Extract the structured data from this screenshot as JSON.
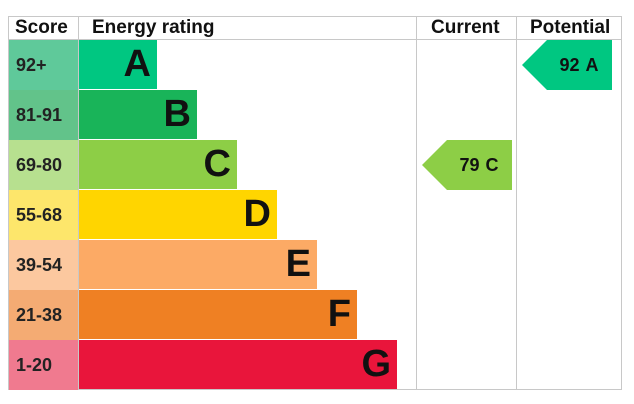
{
  "headers": {
    "score": "Score",
    "rating": "Energy rating",
    "current": "Current",
    "potential": "Potential"
  },
  "chart_data": {
    "type": "bar",
    "bands": [
      {
        "letter": "A",
        "range": "92+",
        "color": "#00c781",
        "score_bg": "#5fc99a"
      },
      {
        "letter": "B",
        "range": "81-91",
        "color": "#19b459",
        "score_bg": "#62c38a"
      },
      {
        "letter": "C",
        "range": "69-80",
        "color": "#8dce46",
        "score_bg": "#b7e08f"
      },
      {
        "letter": "D",
        "range": "55-68",
        "color": "#ffd500",
        "score_bg": "#fde66b"
      },
      {
        "letter": "E",
        "range": "39-54",
        "color": "#fcaa65",
        "score_bg": "#fcc89f"
      },
      {
        "letter": "F",
        "range": "21-38",
        "color": "#ef8023",
        "score_bg": "#f4ab73"
      },
      {
        "letter": "G",
        "range": "1-20",
        "color": "#e9153b",
        "score_bg": "#f07a8f"
      }
    ],
    "current": {
      "value": 79,
      "band": "C",
      "label": "79",
      "letter": "C",
      "color": "#8dce46"
    },
    "potential": {
      "value": 92,
      "band": "A",
      "label": "92",
      "letter": "A",
      "color": "#00c781"
    }
  }
}
